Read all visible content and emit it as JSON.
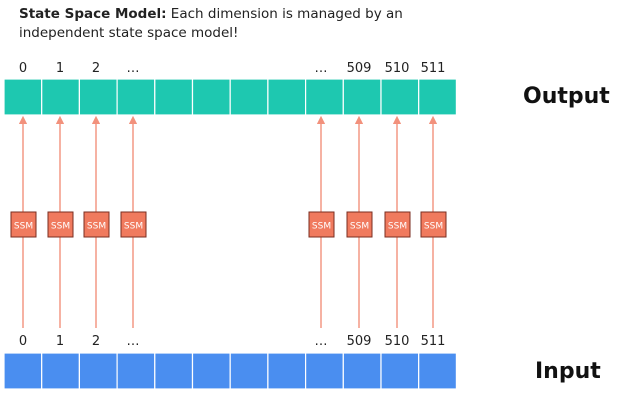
{
  "caption": {
    "bold": "State Space Model:",
    "text": " Each dimension is managed by an independent state space model!"
  },
  "output_label": "Output",
  "input_label": "Input",
  "ssm_label": "SSM",
  "index_labels": [
    "0",
    "1",
    "2",
    "…",
    "…",
    "509",
    "510",
    "511"
  ],
  "colors": {
    "output_cell": "#1ec8b0",
    "input_cell": "#4a8ef0",
    "ssm_box": "#f07a5e",
    "arrow": "#f2917c"
  }
}
